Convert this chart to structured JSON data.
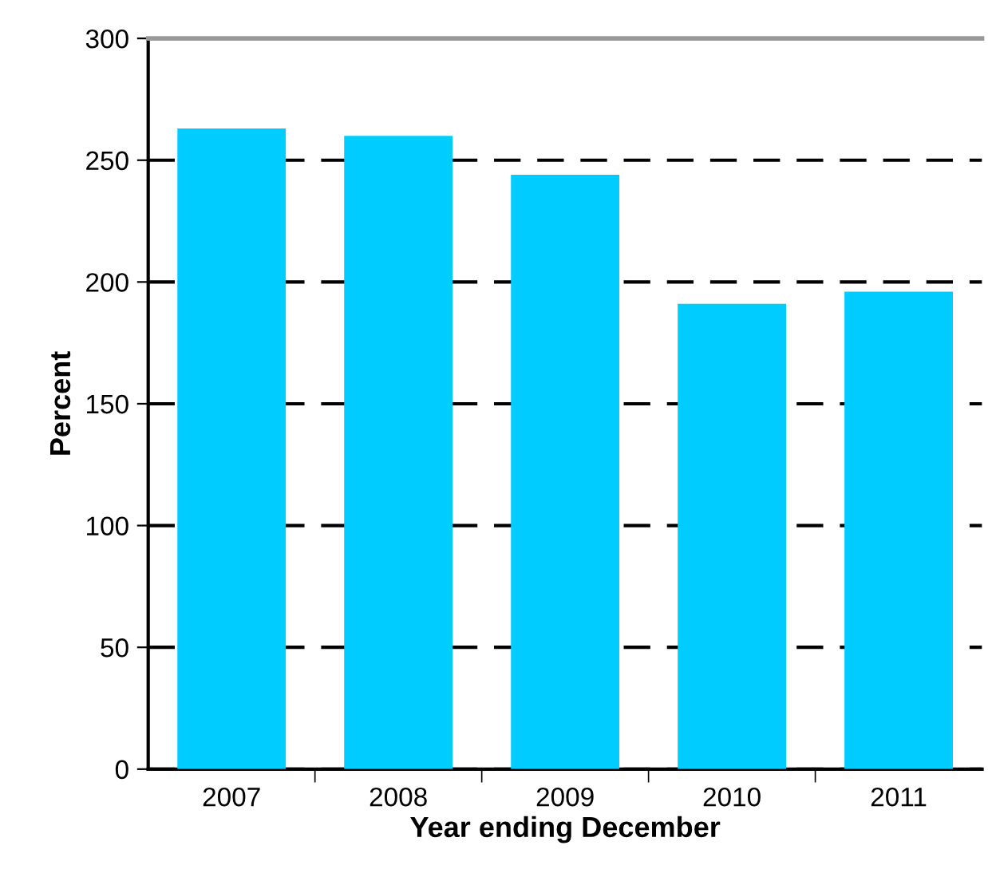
{
  "chart_data": {
    "type": "bar",
    "xlabel": "Year ending December",
    "ylabel": "Percent",
    "categories": [
      "2007",
      "2008",
      "2009",
      "2010",
      "2011"
    ],
    "values": [
      263,
      260,
      244,
      191,
      196
    ],
    "color": "#00ccff",
    "ylim": [
      0,
      300
    ],
    "yticks": [
      0,
      50,
      100,
      150,
      200,
      250,
      300
    ],
    "grid": "y",
    "line_style": "dashed"
  }
}
